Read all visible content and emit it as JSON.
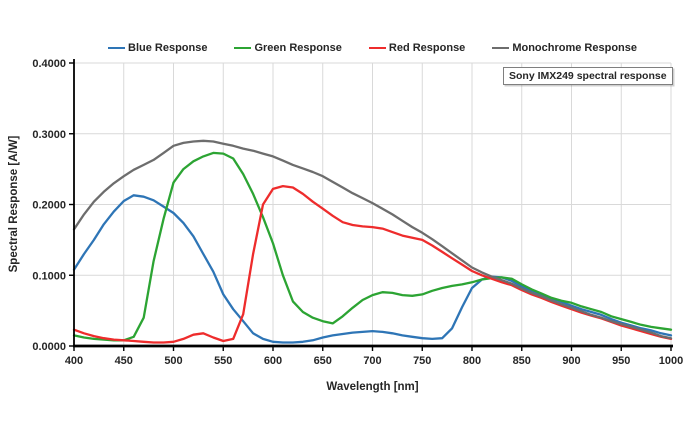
{
  "legend": {
    "items": [
      {
        "label": "Blue Response",
        "color": "#2E75B6"
      },
      {
        "label": "Green Response",
        "color": "#2CA433"
      },
      {
        "label": "Red Response",
        "color": "#EE2C2C"
      },
      {
        "label": "Monochrome Response",
        "color": "#6D6D6D"
      }
    ]
  },
  "annotation": {
    "text": "Sony IMX249 spectral response"
  },
  "axes": {
    "x": {
      "title": "Wavelength [nm]",
      "tick_labels": [
        "400",
        "450",
        "500",
        "550",
        "600",
        "650",
        "700",
        "750",
        "800",
        "850",
        "900",
        "950",
        "1000"
      ]
    },
    "y": {
      "title": "Spectral Response [A/W]",
      "tick_labels": [
        "0.0000",
        "0.1000",
        "0.2000",
        "0.3000",
        "0.4000"
      ]
    }
  },
  "colors": {
    "gridline": "#D9D9D9",
    "axis": "#000000",
    "text": "#262626",
    "annotation_border": "#7F7F7F"
  },
  "chart_data": {
    "type": "line",
    "title": "Sony IMX249 spectral response",
    "xlabel": "Wavelength [nm]",
    "ylabel": "Spectral Response [A/W]",
    "xlim": [
      400,
      1000
    ],
    "ylim": [
      0,
      0.4
    ],
    "x_tick_step": 50,
    "y_tick_step": 0.1,
    "grid": true,
    "legend_position": "top",
    "x": [
      400,
      410,
      420,
      430,
      440,
      450,
      460,
      470,
      480,
      490,
      500,
      510,
      520,
      530,
      540,
      550,
      560,
      570,
      580,
      590,
      600,
      610,
      620,
      630,
      640,
      650,
      660,
      670,
      680,
      690,
      700,
      710,
      720,
      730,
      740,
      750,
      760,
      770,
      780,
      790,
      800,
      810,
      820,
      830,
      840,
      850,
      860,
      870,
      880,
      890,
      900,
      910,
      920,
      930,
      940,
      950,
      960,
      970,
      980,
      990,
      1000
    ],
    "series": [
      {
        "name": "Blue Response",
        "color": "#2E75B6",
        "values": [
          0.108,
          0.13,
          0.15,
          0.172,
          0.19,
          0.205,
          0.213,
          0.211,
          0.206,
          0.197,
          0.188,
          0.174,
          0.155,
          0.13,
          0.105,
          0.073,
          0.052,
          0.035,
          0.018,
          0.01,
          0.006,
          0.005,
          0.005,
          0.006,
          0.008,
          0.012,
          0.015,
          0.017,
          0.019,
          0.02,
          0.021,
          0.02,
          0.018,
          0.015,
          0.013,
          0.011,
          0.01,
          0.011,
          0.025,
          0.055,
          0.082,
          0.094,
          0.098,
          0.097,
          0.092,
          0.084,
          0.078,
          0.073,
          0.067,
          0.062,
          0.057,
          0.052,
          0.048,
          0.044,
          0.038,
          0.033,
          0.029,
          0.025,
          0.022,
          0.018,
          0.015
        ]
      },
      {
        "name": "Green Response",
        "color": "#2CA433",
        "values": [
          0.015,
          0.012,
          0.01,
          0.009,
          0.008,
          0.008,
          0.013,
          0.04,
          0.12,
          0.18,
          0.231,
          0.25,
          0.261,
          0.268,
          0.273,
          0.272,
          0.265,
          0.243,
          0.215,
          0.182,
          0.145,
          0.1,
          0.063,
          0.048,
          0.04,
          0.035,
          0.032,
          0.042,
          0.054,
          0.065,
          0.072,
          0.076,
          0.075,
          0.072,
          0.071,
          0.073,
          0.078,
          0.082,
          0.085,
          0.087,
          0.09,
          0.094,
          0.096,
          0.097,
          0.095,
          0.087,
          0.08,
          0.074,
          0.068,
          0.064,
          0.061,
          0.056,
          0.052,
          0.048,
          0.042,
          0.038,
          0.034,
          0.03,
          0.027,
          0.025,
          0.023
        ]
      },
      {
        "name": "Red Response",
        "color": "#EE2C2C",
        "values": [
          0.023,
          0.018,
          0.014,
          0.011,
          0.009,
          0.008,
          0.007,
          0.006,
          0.005,
          0.005,
          0.006,
          0.01,
          0.016,
          0.018,
          0.012,
          0.007,
          0.01,
          0.045,
          0.13,
          0.2,
          0.222,
          0.226,
          0.224,
          0.215,
          0.204,
          0.194,
          0.184,
          0.175,
          0.171,
          0.169,
          0.168,
          0.166,
          0.161,
          0.156,
          0.153,
          0.15,
          0.142,
          0.133,
          0.124,
          0.115,
          0.106,
          0.1,
          0.095,
          0.09,
          0.086,
          0.079,
          0.073,
          0.068,
          0.062,
          0.057,
          0.052,
          0.047,
          0.043,
          0.039,
          0.034,
          0.029,
          0.025,
          0.021,
          0.017,
          0.013,
          0.01
        ]
      },
      {
        "name": "Monochrome Response",
        "color": "#6D6D6D",
        "values": [
          0.165,
          0.186,
          0.204,
          0.218,
          0.23,
          0.24,
          0.249,
          0.256,
          0.263,
          0.273,
          0.283,
          0.287,
          0.289,
          0.29,
          0.289,
          0.286,
          0.283,
          0.279,
          0.276,
          0.272,
          0.268,
          0.262,
          0.256,
          0.251,
          0.246,
          0.24,
          0.232,
          0.224,
          0.216,
          0.209,
          0.202,
          0.194,
          0.186,
          0.177,
          0.168,
          0.16,
          0.151,
          0.141,
          0.131,
          0.121,
          0.111,
          0.104,
          0.098,
          0.093,
          0.088,
          0.081,
          0.075,
          0.07,
          0.064,
          0.059,
          0.054,
          0.049,
          0.044,
          0.04,
          0.035,
          0.031,
          0.027,
          0.023,
          0.019,
          0.014,
          0.011
        ]
      }
    ]
  }
}
